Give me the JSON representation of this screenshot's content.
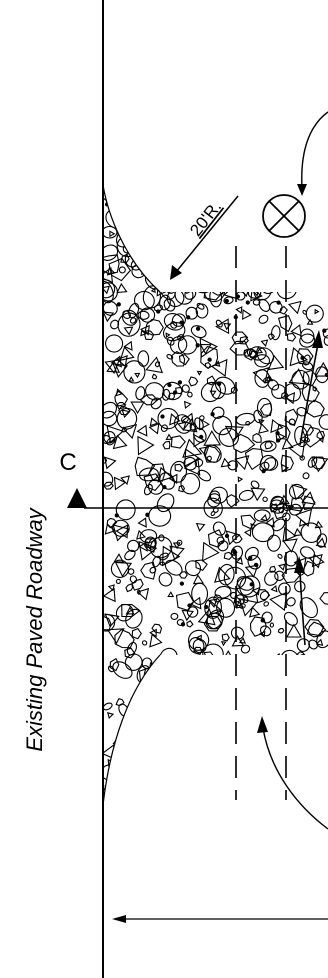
{
  "drawing": {
    "edge_label": "Existing Paved Roadway",
    "radius_label": "20'R.",
    "section_label": "C",
    "line_color": "#000000",
    "background_color": "#ffffff",
    "symbols": {
      "marker": "circle-x-icon",
      "section_arrow": "triangle-up-icon"
    }
  }
}
